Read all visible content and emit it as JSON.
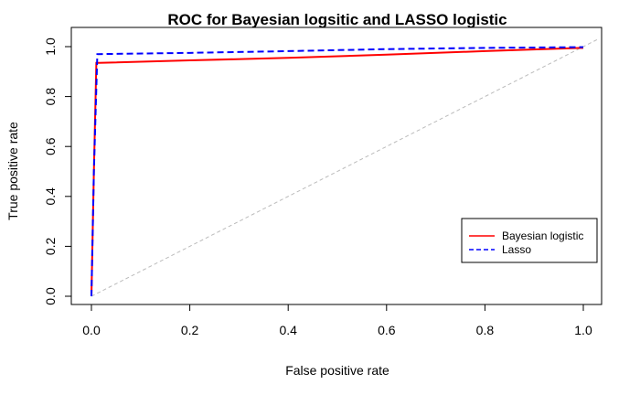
{
  "chart_data": {
    "type": "line",
    "title": "ROC for Bayesian logsitic and LASSO logistic",
    "xlabel": "False positive rate",
    "ylabel": "True positive rate",
    "xlim": [
      0,
      1
    ],
    "ylim": [
      0,
      1
    ],
    "x_ticks": [
      "0.0",
      "0.2",
      "0.4",
      "0.6",
      "0.8",
      "1.0"
    ],
    "y_ticks": [
      "0.0",
      "0.2",
      "0.4",
      "0.6",
      "0.8",
      "1.0"
    ],
    "grid": false,
    "legend_position": "right",
    "series": [
      {
        "name": "Bayesian logistic",
        "color": "#ff0000",
        "style": "solid",
        "x": [
          0.0,
          0.005,
          0.01,
          0.015,
          0.2,
          0.4,
          0.6,
          0.8,
          1.0
        ],
        "y": [
          0.0,
          0.5,
          0.935,
          0.935,
          0.945,
          0.955,
          0.968,
          0.982,
          0.995
        ]
      },
      {
        "name": "Lasso",
        "color": "#0000ff",
        "style": "dashed",
        "x": [
          0.0,
          0.005,
          0.012,
          0.2,
          0.4,
          0.6,
          0.8,
          1.0
        ],
        "y": [
          0.0,
          0.5,
          0.97,
          0.975,
          0.982,
          0.99,
          0.995,
          0.998
        ]
      }
    ],
    "reference_line": {
      "color": "#bbbbbb",
      "style": "dashed"
    }
  }
}
